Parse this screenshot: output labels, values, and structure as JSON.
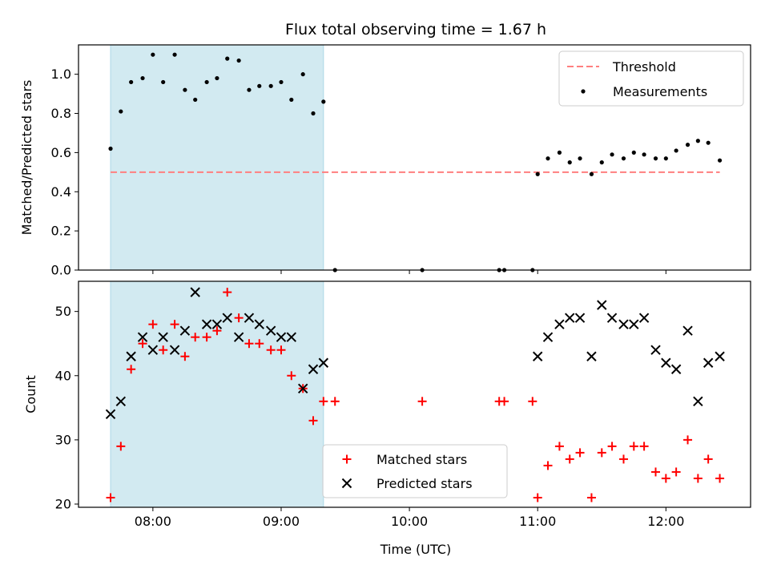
{
  "chart_data": {
    "title": "Flux total observing time = 1.67 h",
    "xlabel": "Time (UTC)",
    "x_ticks": [
      "08:00",
      "09:00",
      "10:00",
      "11:00",
      "12:00"
    ],
    "x_tick_hours": [
      8,
      9,
      10,
      11,
      12
    ],
    "xlim_hours": [
      7.42,
      12.66
    ],
    "shaded_region_hours": [
      7.67,
      9.33
    ],
    "shade_color": "#add8e6",
    "panels": [
      {
        "type": "scatter",
        "ylabel": "Matched/Predicted stars",
        "ylim": [
          0.0,
          1.15
        ],
        "yticks": [
          "0.0",
          "0.2",
          "0.4",
          "0.6",
          "0.8",
          "1.0"
        ],
        "ytick_values": [
          0.0,
          0.2,
          0.4,
          0.6,
          0.8,
          1.0
        ],
        "legend_position": "top-right",
        "threshold": {
          "name": "Threshold",
          "value": 0.5,
          "x_range": [
            7.67,
            12.42
          ],
          "color": "#ff7f7f"
        },
        "series": [
          {
            "name": "Measurements",
            "color": "#000000",
            "points": [
              [
                7.67,
                0.62
              ],
              [
                7.75,
                0.81
              ],
              [
                7.83,
                0.96
              ],
              [
                7.92,
                0.98
              ],
              [
                8.0,
                1.1
              ],
              [
                8.08,
                0.96
              ],
              [
                8.17,
                1.1
              ],
              [
                8.25,
                0.92
              ],
              [
                8.33,
                0.87
              ],
              [
                8.42,
                0.96
              ],
              [
                8.5,
                0.98
              ],
              [
                8.58,
                1.08
              ],
              [
                8.67,
                1.07
              ],
              [
                8.75,
                0.92
              ],
              [
                8.83,
                0.94
              ],
              [
                8.92,
                0.94
              ],
              [
                9.0,
                0.96
              ],
              [
                9.08,
                0.87
              ],
              [
                9.17,
                1.0
              ],
              [
                9.25,
                0.8
              ],
              [
                9.33,
                0.86
              ],
              [
                9.42,
                0.0
              ],
              [
                10.1,
                0.0
              ],
              [
                10.7,
                0.0
              ],
              [
                10.74,
                0.0
              ],
              [
                10.96,
                0.0
              ],
              [
                11.0,
                0.49
              ],
              [
                11.08,
                0.57
              ],
              [
                11.17,
                0.6
              ],
              [
                11.25,
                0.55
              ],
              [
                11.33,
                0.57
              ],
              [
                11.42,
                0.49
              ],
              [
                11.5,
                0.55
              ],
              [
                11.58,
                0.59
              ],
              [
                11.67,
                0.57
              ],
              [
                11.75,
                0.6
              ],
              [
                11.83,
                0.59
              ],
              [
                11.92,
                0.57
              ],
              [
                12.0,
                0.57
              ],
              [
                12.08,
                0.61
              ],
              [
                12.17,
                0.64
              ],
              [
                12.25,
                0.66
              ],
              [
                12.33,
                0.65
              ],
              [
                12.42,
                0.56
              ]
            ]
          }
        ]
      },
      {
        "type": "scatter",
        "ylabel": "Count",
        "ylim": [
          19.5,
          54.7
        ],
        "yticks": [
          "20",
          "30",
          "40",
          "50"
        ],
        "ytick_values": [
          20,
          30,
          40,
          50
        ],
        "legend_position": "lower-center",
        "series": [
          {
            "name": "Matched stars",
            "color": "#ff0000",
            "marker": "+",
            "points": [
              [
                7.67,
                21
              ],
              [
                7.75,
                29
              ],
              [
                7.83,
                41
              ],
              [
                7.92,
                45
              ],
              [
                8.0,
                48
              ],
              [
                8.08,
                44
              ],
              [
                8.17,
                48
              ],
              [
                8.25,
                43
              ],
              [
                8.33,
                46
              ],
              [
                8.42,
                46
              ],
              [
                8.5,
                47
              ],
              [
                8.58,
                53
              ],
              [
                8.67,
                49
              ],
              [
                8.75,
                45
              ],
              [
                8.83,
                45
              ],
              [
                8.92,
                44
              ],
              [
                9.0,
                44
              ],
              [
                9.08,
                40
              ],
              [
                9.17,
                38
              ],
              [
                9.25,
                33
              ],
              [
                9.33,
                36
              ],
              [
                9.42,
                36
              ],
              [
                10.1,
                36
              ],
              [
                10.7,
                36
              ],
              [
                10.74,
                36
              ],
              [
                10.96,
                36
              ],
              [
                11.0,
                21
              ],
              [
                11.08,
                26
              ],
              [
                11.17,
                29
              ],
              [
                11.25,
                27
              ],
              [
                11.33,
                28
              ],
              [
                11.42,
                21
              ],
              [
                11.5,
                28
              ],
              [
                11.58,
                29
              ],
              [
                11.67,
                27
              ],
              [
                11.75,
                29
              ],
              [
                11.83,
                29
              ],
              [
                11.92,
                25
              ],
              [
                12.0,
                24
              ],
              [
                12.08,
                25
              ],
              [
                12.17,
                30
              ],
              [
                12.25,
                24
              ],
              [
                12.33,
                27
              ],
              [
                12.42,
                24
              ]
            ]
          },
          {
            "name": "Predicted stars",
            "color": "#000000",
            "marker": "x",
            "points": [
              [
                7.67,
                34
              ],
              [
                7.75,
                36
              ],
              [
                7.83,
                43
              ],
              [
                7.92,
                46
              ],
              [
                8.0,
                44
              ],
              [
                8.08,
                46
              ],
              [
                8.17,
                44
              ],
              [
                8.25,
                47
              ],
              [
                8.33,
                53
              ],
              [
                8.42,
                48
              ],
              [
                8.5,
                48
              ],
              [
                8.58,
                49
              ],
              [
                8.67,
                46
              ],
              [
                8.75,
                49
              ],
              [
                8.83,
                48
              ],
              [
                8.92,
                47
              ],
              [
                9.0,
                46
              ],
              [
                9.08,
                46
              ],
              [
                9.17,
                38
              ],
              [
                9.25,
                41
              ],
              [
                9.33,
                42
              ],
              [
                11.0,
                43
              ],
              [
                11.08,
                46
              ],
              [
                11.17,
                48
              ],
              [
                11.25,
                49
              ],
              [
                11.33,
                49
              ],
              [
                11.42,
                43
              ],
              [
                11.5,
                51
              ],
              [
                11.58,
                49
              ],
              [
                11.67,
                48
              ],
              [
                11.75,
                48
              ],
              [
                11.83,
                49
              ],
              [
                11.92,
                44
              ],
              [
                12.0,
                42
              ],
              [
                12.08,
                41
              ],
              [
                12.17,
                47
              ],
              [
                12.25,
                36
              ],
              [
                12.33,
                42
              ],
              [
                12.42,
                43
              ]
            ]
          }
        ]
      }
    ]
  }
}
